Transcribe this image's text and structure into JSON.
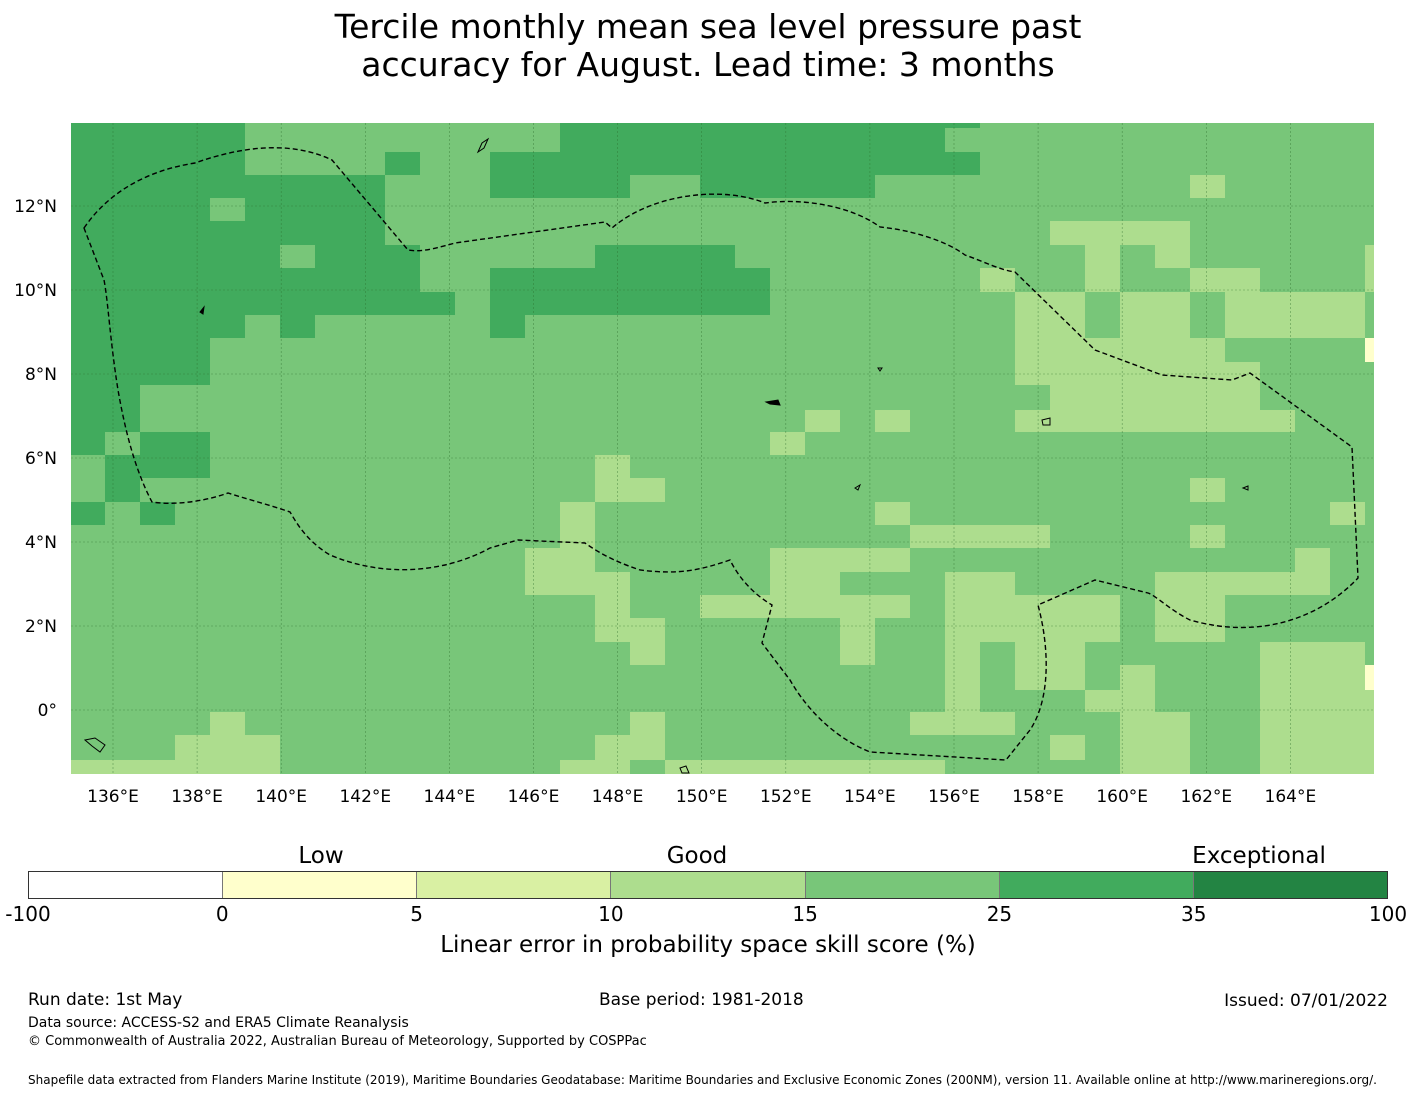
{
  "title": {
    "line1": "Tercile monthly mean sea level pressure past",
    "line2": "accuracy for August. Lead time: 3 months"
  },
  "map": {
    "lon_ticks": [
      "136°E",
      "138°E",
      "140°E",
      "142°E",
      "144°E",
      "146°E",
      "148°E",
      "150°E",
      "152°E",
      "154°E",
      "156°E",
      "158°E",
      "160°E",
      "162°E",
      "164°E"
    ],
    "lat_ticks": [
      "12°N",
      "10°N",
      "8°N",
      "6°N",
      "4°N",
      "2°N",
      "0°"
    ],
    "colors": {
      "c15_25": "#78c679",
      "c10_15": "#addd8e",
      "c25_35": "#41ab5d",
      "c5_10": "#d9f0a3",
      "c0_5": "#ffffcc",
      "gridline": "#2a6b2a",
      "boundary": "#000000"
    }
  },
  "legend": {
    "categories": [
      "Low",
      "Good",
      "Exceptional"
    ],
    "colors": [
      "#ffffff",
      "#ffffcc",
      "#d9f0a3",
      "#addd8e",
      "#78c679",
      "#41ab5d",
      "#238443"
    ],
    "ticks": [
      "-100",
      "0",
      "5",
      "10",
      "15",
      "25",
      "35",
      "100"
    ],
    "label": "Linear error in probability space skill score (%)"
  },
  "footer": {
    "run_date": "Run date: 1st May",
    "base_period": "Base period: 1981-2018",
    "issued": "Issued: 07/01/2022",
    "data_source": "Data source: ACCESS-S2 and ERA5 Climate Reanalysis",
    "copyright": "© Commonwealth of Australia 2022, Australian Bureau of Meteorology, Supported by COSPPac",
    "shapefile": "Shapefile data extracted from Flanders Marine Institute (2019), Maritime Boundaries Geodatabase: Maritime Boundaries and Exclusive Economic Zones (200NM), version 11. Available online at http://www.marineregions.org/."
  }
}
